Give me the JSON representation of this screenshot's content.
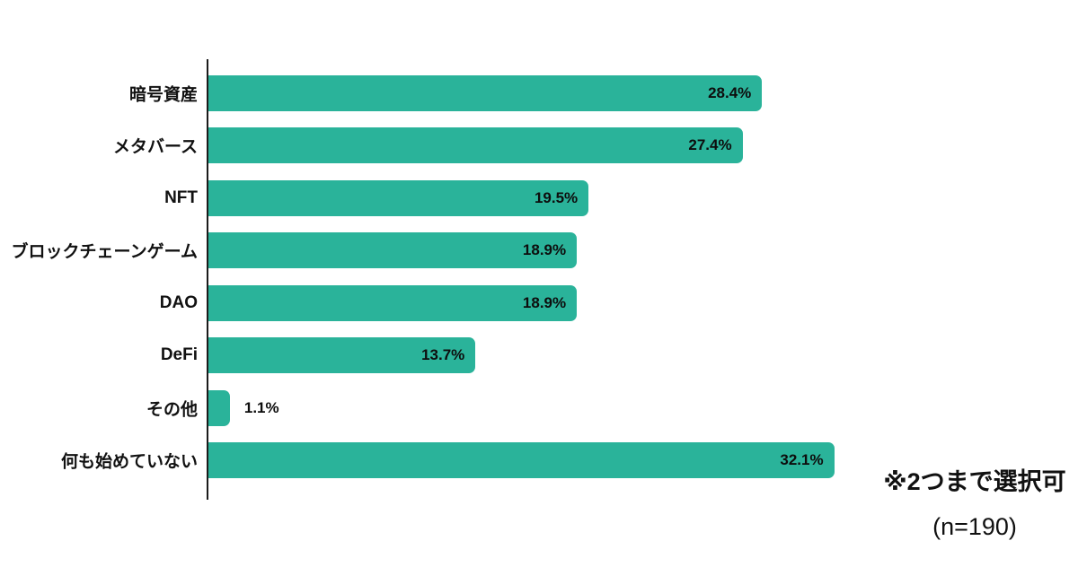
{
  "chart_data": {
    "type": "bar",
    "orientation": "horizontal",
    "title": "",
    "xlabel": "",
    "ylabel": "",
    "categories": [
      "暗号資産",
      "メタバース",
      "NFT",
      "ブロックチェーンゲーム",
      "DAO",
      "DeFi",
      "その他",
      "何も始めていない"
    ],
    "values": [
      28.4,
      27.4,
      19.5,
      18.9,
      18.9,
      13.7,
      1.1,
      32.1
    ],
    "value_labels": [
      "28.4%",
      "27.4%",
      "19.5%",
      "18.9%",
      "18.9%",
      "13.7%",
      "1.1%",
      "32.1%"
    ],
    "xlim": [
      0,
      33.5
    ],
    "grid": false,
    "legend": false,
    "bar_color": "#2ab39a",
    "annotations": [
      "※2つまで選択可",
      "(n=190)"
    ]
  },
  "annotation": {
    "line1": "※2つまで選択可",
    "line2": "(n=190)"
  },
  "colors": {
    "bar": "#2ab39a",
    "axis": "#1b1b1b",
    "text": "#111111",
    "background": "#ffffff"
  }
}
